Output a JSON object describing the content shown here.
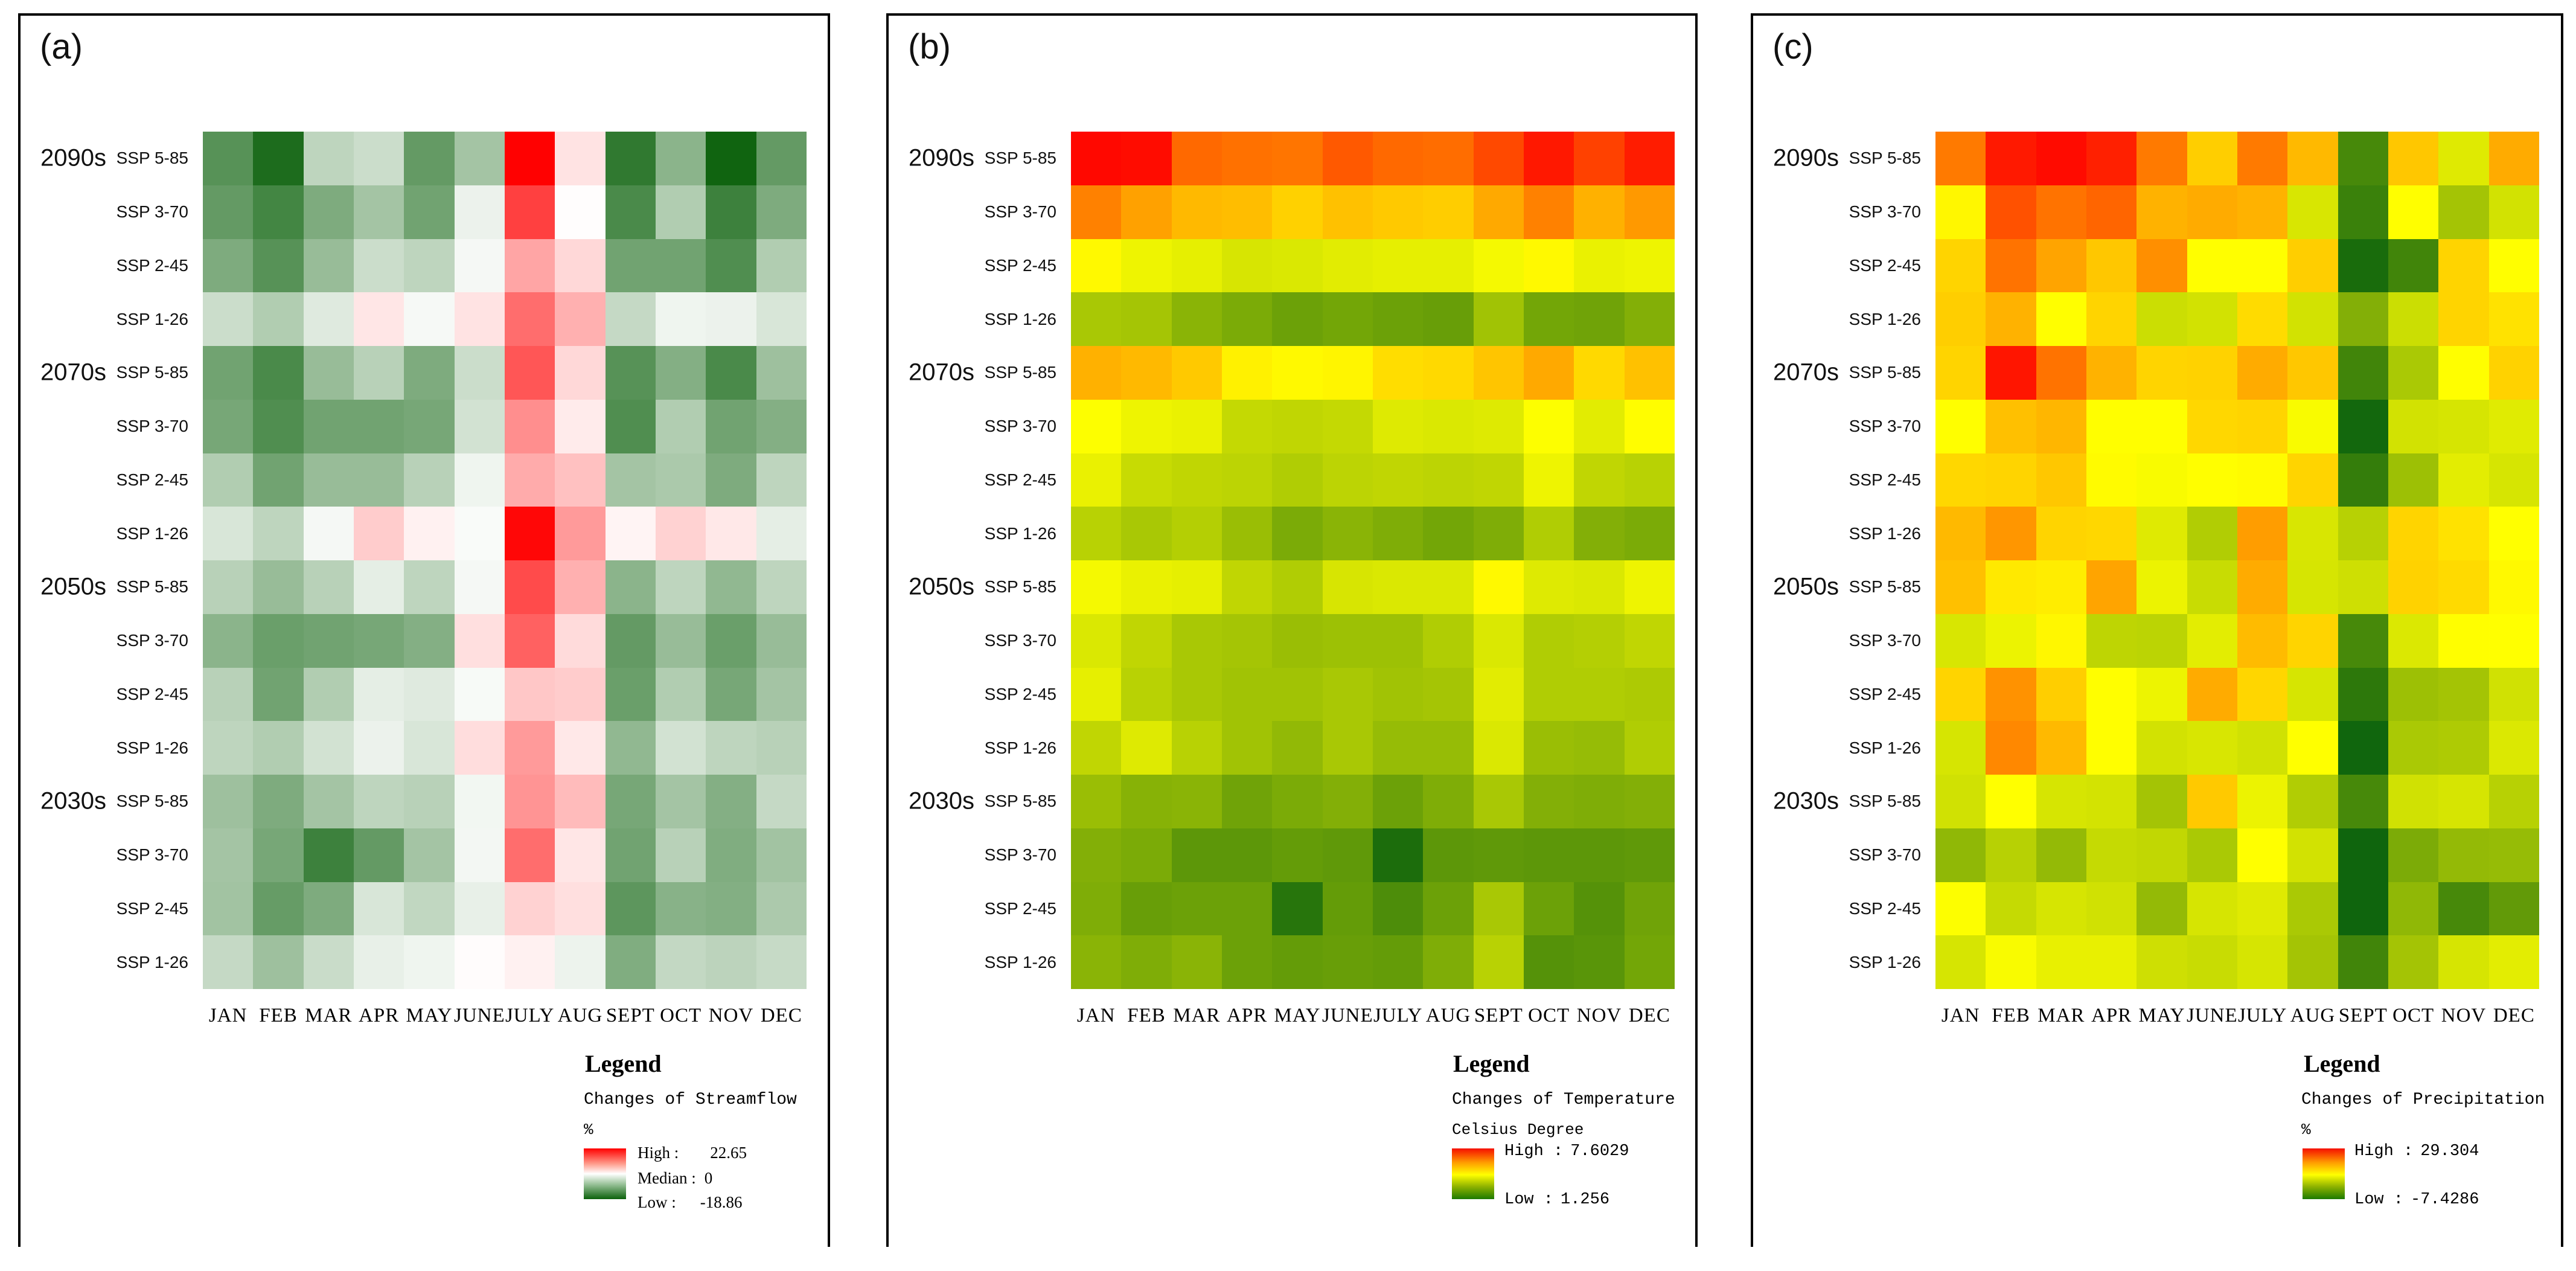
{
  "figure": {
    "background": "#ffffff",
    "months": [
      "JAN",
      "FEB",
      "MAR",
      "APR",
      "MAY",
      "JUNE",
      "JULY",
      "AUG",
      "SEPT",
      "OCT",
      "NOV",
      "DEC"
    ],
    "decades": [
      "2090s",
      "2070s",
      "2050s",
      "2030s"
    ],
    "scenarios": [
      "SSP 5-85",
      "SSP 3-70",
      "SSP 2-45",
      "SSP 1-26"
    ]
  },
  "panels": [
    {
      "title": "(a)",
      "legend": {
        "heading": "Legend",
        "layer_name": "Changes of Streamflow",
        "unit": "%",
        "scale_type": "diverging",
        "entries": [
          {
            "label": "High :",
            "value": "22.65"
          },
          {
            "label": "Median :",
            "value": "0"
          },
          {
            "label": "Low :",
            "value": "-18.86"
          }
        ]
      }
    },
    {
      "title": "(b)",
      "legend": {
        "heading": "Legend",
        "layer_name": "Changes of Temperature",
        "unit": "Celsius Degree",
        "scale_type": "sequential",
        "entries": [
          {
            "label": "High :",
            "value": "7.6029"
          },
          {
            "label": "Low :",
            "value": "1.256"
          }
        ]
      }
    },
    {
      "title": "(c)",
      "legend": {
        "heading": "Legend",
        "layer_name": "Changes of Precipitation",
        "unit": "%",
        "scale_type": "sequential",
        "entries": [
          {
            "label": "High :",
            "value": "29.304"
          },
          {
            "label": "Low :",
            "value": "-7.4286"
          }
        ]
      }
    }
  ],
  "chart_data": [
    {
      "type": "heatmap",
      "panel": "(a)",
      "title": "Changes of Streamflow (%)",
      "x_categories": [
        "JAN",
        "FEB",
        "MAR",
        "APR",
        "MAY",
        "JUNE",
        "JULY",
        "AUG",
        "SEPT",
        "OCT",
        "NOV",
        "DEC"
      ],
      "y_categories": [
        "2090s SSP 5-85",
        "2090s SSP 3-70",
        "2090s SSP 2-45",
        "2090s SSP 1-26",
        "2070s SSP 5-85",
        "2070s SSP 3-70",
        "2070s SSP 2-45",
        "2070s SSP 1-26",
        "2050s SSP 5-85",
        "2050s SSP 3-70",
        "2050s SSP 2-45",
        "2050s SSP 1-26",
        "2030s SSP 5-85",
        "2030s SSP 3-70",
        "2030s SSP 2-45",
        "2030s SSP 1-26"
      ],
      "color_scale": {
        "high": 22.65,
        "median": 0,
        "low": -18.86,
        "high_color": "#ff0000",
        "mid_color": "#ffffff",
        "low_color": "#0b610b"
      },
      "values": [
        [
          -13,
          -17.5,
          -5,
          -4,
          -12,
          -7,
          22.6,
          2.5,
          -16,
          -9,
          -18.5,
          -12
        ],
        [
          -12,
          -14.5,
          -10,
          -7,
          -11,
          -1.5,
          17,
          0.2,
          -14,
          -6,
          -15,
          -10
        ],
        [
          -10,
          -13,
          -8,
          -4,
          -5,
          -0.8,
          8,
          3.5,
          -11,
          -11,
          -13.5,
          -6
        ],
        [
          -4,
          -6,
          -2.5,
          2.2,
          -0.7,
          2.5,
          13,
          7,
          -4.5,
          -1.2,
          -1.5,
          -3
        ],
        [
          -11,
          -14,
          -8,
          -5.5,
          -10,
          -4,
          15,
          3.5,
          -13,
          -9.5,
          -14,
          -7.5
        ],
        [
          -10.5,
          -13.5,
          -11,
          -11,
          -10.5,
          -3.5,
          10,
          1.8,
          -13.5,
          -6,
          -11,
          -9.5
        ],
        [
          -6,
          -11,
          -8,
          -8,
          -5.5,
          -1.2,
          7.5,
          5.5,
          -7,
          -6.5,
          -10,
          -5
        ],
        [
          -3,
          -5,
          -0.8,
          4.5,
          1.2,
          -0.5,
          22,
          9,
          1,
          4,
          2,
          -2
        ],
        [
          -5.5,
          -8,
          -5.5,
          -2,
          -5,
          -0.8,
          16,
          7,
          -9,
          -5,
          -8.5,
          -5
        ],
        [
          -9,
          -11.5,
          -11,
          -10.5,
          -9.5,
          2.8,
          14,
          3.2,
          -12,
          -8,
          -11.5,
          -8
        ],
        [
          -5.5,
          -11,
          -6,
          -2,
          -2.5,
          -0.6,
          5,
          4.5,
          -11.5,
          -6,
          -10.5,
          -7
        ],
        [
          -5,
          -6,
          -3.5,
          -1.5,
          -3,
          3,
          9,
          2,
          -8.5,
          -3.5,
          -5,
          -5.5
        ],
        [
          -7.5,
          -10,
          -7,
          -5,
          -5.5,
          -1,
          9.5,
          6,
          -10.5,
          -7,
          -9.5,
          -4.5
        ],
        [
          -7,
          -10.5,
          -15,
          -12,
          -7,
          -0.9,
          13,
          2.2,
          -11,
          -5.5,
          -9.8,
          -7.2
        ],
        [
          -7.2,
          -11.8,
          -10,
          -3,
          -4.8,
          -1.8,
          4,
          2.8,
          -12.5,
          -9.2,
          -9.6,
          -6.4
        ],
        [
          -4.5,
          -7.5,
          -4.2,
          -1.8,
          -1.2,
          0.3,
          1.2,
          -1.4,
          -9.8,
          -4.6,
          -5.2,
          -4.4
        ]
      ]
    },
    {
      "type": "heatmap",
      "panel": "(b)",
      "title": "Changes of Temperature (Celsius Degree)",
      "x_categories": [
        "JAN",
        "FEB",
        "MAR",
        "APR",
        "MAY",
        "JUNE",
        "JULY",
        "AUG",
        "SEPT",
        "OCT",
        "NOV",
        "DEC"
      ],
      "y_categories": [
        "2090s SSP 5-85",
        "2090s SSP 3-70",
        "2090s SSP 2-45",
        "2090s SSP 1-26",
        "2070s SSP 5-85",
        "2070s SSP 3-70",
        "2070s SSP 2-45",
        "2070s SSP 1-26",
        "2050s SSP 5-85",
        "2050s SSP 3-70",
        "2050s SSP 2-45",
        "2050s SSP 1-26",
        "2030s SSP 5-85",
        "2030s SSP 3-70",
        "2030s SSP 2-45",
        "2030s SSP 1-26"
      ],
      "color_scale": {
        "high": 7.6029,
        "low": 1.256,
        "high_color": "#ff0000",
        "mid_color": "#ffff00",
        "low_color": "#0d640d"
      },
      "values": [
        [
          7.5,
          7.45,
          6.3,
          6.2,
          6.15,
          6.5,
          6.3,
          6.25,
          6.7,
          7.3,
          6.8,
          7.25
        ],
        [
          6.0,
          5.6,
          5.3,
          5.25,
          5.0,
          5.2,
          5.1,
          5.05,
          5.5,
          6.0,
          5.4,
          5.7
        ],
        [
          4.5,
          4.2,
          4.1,
          3.9,
          3.95,
          4.05,
          4.1,
          4.1,
          4.3,
          4.5,
          4.15,
          4.2
        ],
        [
          3.3,
          3.25,
          2.9,
          2.7,
          2.5,
          2.6,
          2.5,
          2.45,
          3.2,
          2.6,
          2.55,
          2.8
        ],
        [
          5.4,
          5.3,
          5.1,
          4.6,
          4.5,
          4.55,
          4.85,
          4.9,
          5.15,
          5.5,
          4.9,
          5.2
        ],
        [
          4.4,
          4.2,
          4.15,
          3.65,
          3.6,
          3.65,
          4.0,
          3.95,
          4.0,
          4.4,
          4.05,
          4.45
        ],
        [
          4.15,
          3.7,
          3.6,
          3.55,
          3.4,
          3.55,
          3.6,
          3.55,
          3.6,
          4.2,
          3.6,
          3.5
        ],
        [
          3.5,
          3.3,
          3.45,
          3.1,
          2.7,
          2.9,
          2.75,
          2.6,
          2.75,
          3.4,
          2.8,
          2.7
        ],
        [
          4.3,
          4.15,
          4.1,
          3.6,
          3.4,
          3.9,
          3.95,
          3.95,
          4.5,
          4.0,
          3.95,
          4.2
        ],
        [
          3.95,
          3.6,
          3.3,
          3.25,
          3.1,
          3.15,
          3.15,
          3.4,
          3.95,
          3.4,
          3.45,
          3.6
        ],
        [
          4.1,
          3.5,
          3.3,
          3.2,
          3.2,
          3.3,
          3.2,
          3.25,
          4.05,
          3.4,
          3.4,
          3.35
        ],
        [
          3.6,
          4.0,
          3.5,
          3.2,
          3.0,
          3.3,
          3.05,
          3.05,
          3.95,
          3.1,
          3.05,
          3.4
        ],
        [
          3.1,
          2.85,
          2.9,
          2.55,
          2.7,
          2.8,
          2.5,
          2.75,
          3.3,
          2.8,
          2.75,
          2.8
        ],
        [
          2.8,
          2.7,
          2.3,
          2.3,
          2.4,
          2.35,
          1.45,
          2.3,
          2.35,
          2.3,
          2.3,
          2.35
        ],
        [
          2.75,
          2.45,
          2.5,
          2.5,
          1.6,
          2.4,
          2.1,
          2.5,
          3.3,
          2.5,
          2.2,
          2.55
        ],
        [
          2.9,
          2.75,
          2.9,
          2.5,
          2.4,
          2.45,
          2.4,
          2.75,
          3.5,
          2.2,
          2.25,
          2.6
        ]
      ]
    },
    {
      "type": "heatmap",
      "panel": "(c)",
      "title": "Changes of Precipitation (%)",
      "x_categories": [
        "JAN",
        "FEB",
        "MAR",
        "APR",
        "MAY",
        "JUNE",
        "JULY",
        "AUG",
        "SEPT",
        "OCT",
        "NOV",
        "DEC"
      ],
      "y_categories": [
        "2090s SSP 5-85",
        "2090s SSP 3-70",
        "2090s SSP 2-45",
        "2090s SSP 1-26",
        "2070s SSP 5-85",
        "2070s SSP 3-70",
        "2070s SSP 2-45",
        "2070s SSP 1-26",
        "2050s SSP 5-85",
        "2050s SSP 3-70",
        "2050s SSP 2-45",
        "2050s SSP 1-26",
        "2030s SSP 5-85",
        "2030s SSP 3-70",
        "2030s SSP 2-45",
        "2030s SSP 1-26"
      ],
      "color_scale": {
        "high": 29.304,
        "low": -7.4286,
        "high_color": "#ff0000",
        "mid_color": "#ffff00",
        "low_color": "#0d640d"
      },
      "values": [
        [
          20.5,
          27.5,
          28.5,
          27,
          20.5,
          14.5,
          20.5,
          16,
          -3,
          15,
          8.5,
          17
        ],
        [
          11.5,
          23.5,
          21,
          22,
          16.5,
          17,
          16.5,
          8,
          -4,
          11,
          4,
          7.5
        ],
        [
          14,
          21,
          17.5,
          15,
          19,
          11,
          11,
          14.5,
          -6.5,
          -3.5,
          14,
          11
        ],
        [
          14.5,
          16.5,
          11,
          14,
          7,
          7.5,
          13.5,
          7.5,
          1.5,
          7,
          14,
          13
        ],
        [
          14,
          27.8,
          21,
          16.5,
          14,
          14.2,
          17,
          15,
          -3.5,
          4.5,
          11,
          14.2
        ],
        [
          11,
          15.5,
          16.2,
          11,
          11,
          13.8,
          14,
          10.5,
          -7,
          7.5,
          7.8,
          8.6
        ],
        [
          13.8,
          14,
          15,
          11.2,
          10.5,
          11,
          11.2,
          14,
          -4.5,
          3.5,
          8.8,
          7.8
        ],
        [
          16,
          18.5,
          14,
          13.8,
          8.5,
          5,
          18,
          8,
          5.5,
          14,
          13,
          10.9
        ],
        [
          15.5,
          12.5,
          12.2,
          17.5,
          9.5,
          6.8,
          17,
          7.8,
          7.2,
          14.2,
          13.6,
          11.4
        ],
        [
          8,
          9.5,
          11.5,
          6,
          5.8,
          8.8,
          15.8,
          14,
          -3,
          8.2,
          11,
          10.9
        ],
        [
          14,
          18.8,
          14.5,
          11,
          9.6,
          17,
          13.9,
          7.8,
          -5,
          3.5,
          4,
          7.4
        ],
        [
          7.8,
          19.5,
          16,
          11,
          7.5,
          8,
          7.4,
          10.9,
          -7.2,
          4.5,
          4.8,
          8.2
        ],
        [
          7.4,
          10.9,
          7.8,
          7.6,
          4,
          14.8,
          9.5,
          5,
          -3,
          7.4,
          7.8,
          5.5
        ],
        [
          2.5,
          5.5,
          2.8,
          6.5,
          6.2,
          4.5,
          10.9,
          7.5,
          -7.3,
          1,
          2.8,
          3
        ],
        [
          10.8,
          6.5,
          7.8,
          7.4,
          2.8,
          7.8,
          8.5,
          4.5,
          -7.3,
          2.5,
          -3,
          -1
        ],
        [
          7.8,
          10.5,
          9.2,
          9.2,
          7.2,
          6.8,
          7.8,
          4,
          -3.5,
          4,
          7.8,
          8.8
        ]
      ]
    }
  ]
}
